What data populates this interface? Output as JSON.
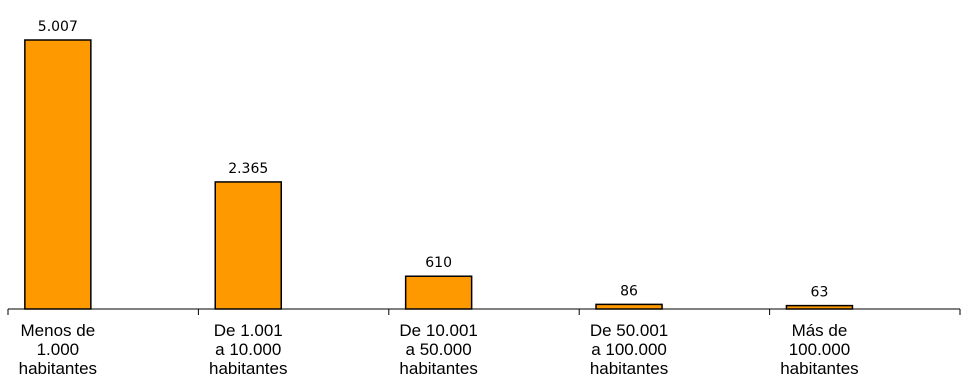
{
  "chart_data": {
    "type": "bar",
    "categories": [
      [
        "Menos de",
        "1.000",
        "habitantes"
      ],
      [
        "De 1.001",
        "a 10.000",
        "habitantes"
      ],
      [
        "De 10.001",
        "a 50.000",
        "habitantes"
      ],
      [
        "De 50.001",
        "a 100.000",
        "habitantes"
      ],
      [
        "Más de",
        "100.000",
        "habitantes"
      ]
    ],
    "values": [
      5007,
      2365,
      610,
      86,
      63
    ],
    "value_labels": [
      "5.007",
      "2.365",
      "610",
      "86",
      "63"
    ],
    "ylim": [
      0,
      5007
    ],
    "grid": false,
    "bar_color": "#ff9900",
    "title": "",
    "xlabel": "",
    "ylabel": ""
  }
}
